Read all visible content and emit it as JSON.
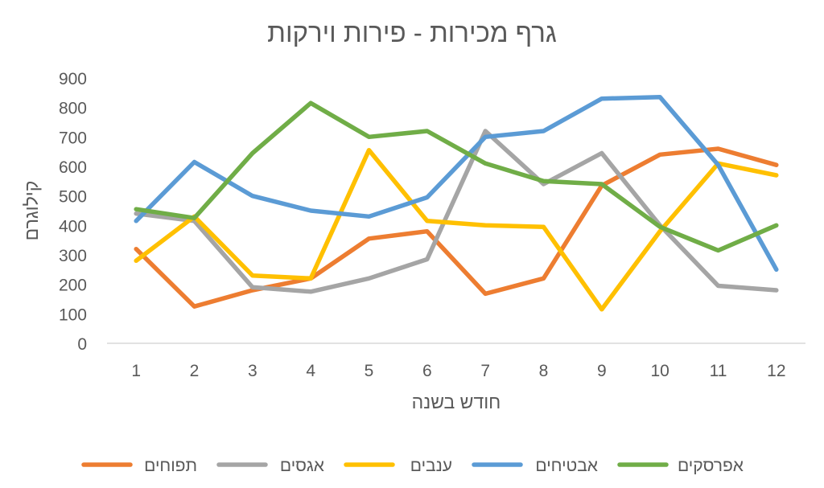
{
  "chart_data": {
    "type": "line",
    "title": "גרף מכירות - פירות וירקות",
    "xlabel": "חודש בשנה",
    "ylabel": "קילוגרם",
    "x": [
      1,
      2,
      3,
      4,
      5,
      6,
      7,
      8,
      9,
      10,
      11,
      12
    ],
    "ylim": [
      0,
      900
    ],
    "yticks": [
      0,
      100,
      200,
      300,
      400,
      500,
      600,
      700,
      800,
      900
    ],
    "grid": false,
    "legend_position": "bottom",
    "series": [
      {
        "name": "תפוחים",
        "color": "#ED7D31",
        "values": [
          320,
          125,
          180,
          220,
          355,
          380,
          168,
          220,
          535,
          640,
          660,
          605
        ]
      },
      {
        "name": "אגסים",
        "color": "#A5A5A5",
        "values": [
          440,
          415,
          190,
          175,
          220,
          285,
          720,
          540,
          645,
          400,
          195,
          180
        ]
      },
      {
        "name": "ענבים",
        "color": "#FFC000",
        "values": [
          280,
          430,
          230,
          220,
          655,
          415,
          400,
          395,
          115,
          380,
          610,
          570
        ]
      },
      {
        "name": "אבטיחים",
        "color": "#5B9BD5",
        "values": [
          415,
          615,
          500,
          450,
          430,
          495,
          700,
          720,
          830,
          835,
          605,
          250
        ]
      },
      {
        "name": "אפרסקים",
        "color": "#70AD47",
        "values": [
          455,
          425,
          645,
          815,
          700,
          720,
          610,
          550,
          540,
          395,
          315,
          400
        ]
      }
    ]
  }
}
